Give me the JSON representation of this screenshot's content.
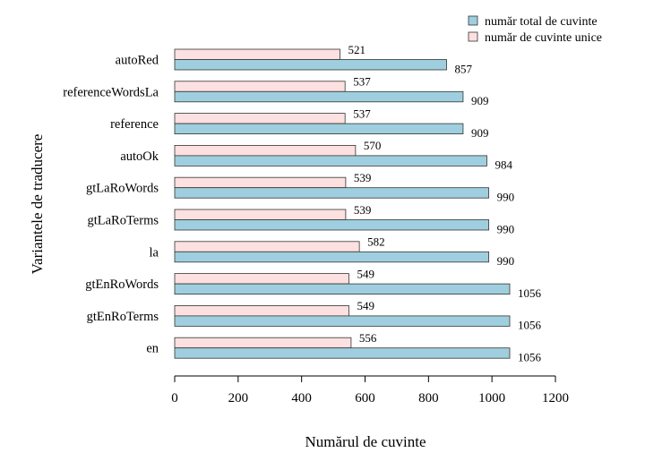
{
  "chart_data": {
    "type": "bar",
    "orientation": "horizontal",
    "title": "",
    "xlabel": "Numărul de cuvinte",
    "ylabel": "Variantele de traducere",
    "xlim": [
      0,
      1200
    ],
    "xticks": [
      "0",
      "200",
      "400",
      "600",
      "800",
      "1000",
      "1200"
    ],
    "grid": false,
    "legend_position": "top-right",
    "categories": [
      "autoRed",
      "referenceWordsLa",
      "reference",
      "autoOk",
      "gtLaRoWords",
      "gtLaRoTerms",
      "la",
      "gtEnRoWords",
      "gtEnRoTerms",
      "en"
    ],
    "series": [
      {
        "name": "număr total de cuvinte",
        "color": "#9fcfdf",
        "values": [
          857,
          909,
          909,
          984,
          990,
          990,
          990,
          1056,
          1056,
          1056
        ]
      },
      {
        "name": "număr de cuvinte unice",
        "color": "#fde0e0",
        "values": [
          521,
          537,
          537,
          570,
          539,
          539,
          582,
          549,
          549,
          556
        ]
      }
    ]
  }
}
